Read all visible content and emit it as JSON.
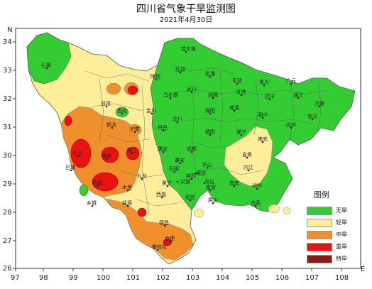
{
  "title": "四川省气象干旱监测图",
  "subtitle": "2021年4月30日",
  "axes": {
    "x_ticks": [
      "97",
      "98",
      "99",
      "100",
      "101",
      "102",
      "103",
      "104",
      "105",
      "106",
      "107",
      "108"
    ],
    "y_ticks": [
      "34",
      "33",
      "32",
      "31",
      "30",
      "29",
      "28",
      "27",
      "26"
    ],
    "x_unit": "E",
    "y_unit": "N"
  },
  "legend": {
    "title": "图例",
    "items": [
      {
        "label": "无旱",
        "color": "#33cc33"
      },
      {
        "label": "轻旱",
        "color": "#ffee99"
      },
      {
        "label": "中旱",
        "color": "#f0902c"
      },
      {
        "label": "重旱",
        "color": "#ee1111"
      },
      {
        "label": "特旱",
        "color": "#8b1a1a"
      }
    ]
  },
  "cities": [
    "石渠",
    "若尔盖",
    "红原",
    "松潘",
    "平武",
    "青川",
    "广元",
    "阿坝",
    "马尔康",
    "北川",
    "剑阁",
    "旺苍",
    "巴中",
    "通江",
    "万源",
    "甘孜",
    "色达",
    "金川",
    "汶川",
    "绵阳",
    "苍溪",
    "阆中",
    "达州",
    "宣汉",
    "新龙",
    "炉霍",
    "丹巴",
    "成都",
    "德阳",
    "遂宁",
    "南充",
    "白玉",
    "巴塘",
    "理塘",
    "雅江",
    "康定",
    "乐山",
    "内江",
    "泸州",
    "雅安",
    "宜宾",
    "稻城",
    "乡城",
    "木里",
    "西昌",
    "攀枝花",
    "盐源",
    "会理",
    "德昌",
    "九龙",
    "冕宁",
    "石棉",
    "汉源",
    "越西",
    "昭觉",
    "雷波",
    "屏山",
    "峨边",
    "马边",
    "自贡",
    "古蔺"
  ]
}
